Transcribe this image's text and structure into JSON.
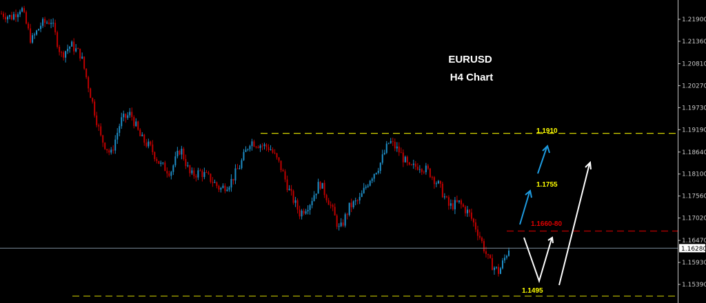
{
  "chart_data": {
    "type": "candlestick",
    "title": "EURUSD",
    "subtitle": "H4 Chart",
    "symbol": "EURUSD",
    "timeframe": "H4",
    "y_ticks": [
      "1.21900",
      "1.21360",
      "1.20810",
      "1.20270",
      "1.19730",
      "1.19190",
      "1.18640",
      "1.18100",
      "1.17560",
      "1.17020",
      "1.16470",
      "1.15930",
      "1.15390"
    ],
    "ylim": [
      1.1492,
      1.2218
    ],
    "current_price": "1.16280",
    "close_path": [
      1.2204,
      1.2195,
      1.222,
      1.2136,
      1.2178,
      1.2187,
      1.2102,
      1.2127,
      1.2102,
      1.2001,
      1.1899,
      1.1857,
      1.1941,
      1.1958,
      1.1899,
      1.1874,
      1.1832,
      1.1815,
      1.1874,
      1.1806,
      1.1815,
      1.1798,
      1.1773,
      1.1789,
      1.1832,
      1.1891,
      1.1882,
      1.1874,
      1.1832,
      1.1764,
      1.1713,
      1.1739,
      1.1789,
      1.1739,
      1.1671,
      1.173,
      1.1747,
      1.1798,
      1.1832,
      1.1891,
      1.1865,
      1.1823,
      1.1832,
      1.1815,
      1.1781,
      1.173,
      1.1739,
      1.1713,
      1.1662,
      1.1595,
      1.1569,
      1.1628
    ],
    "levels": [
      {
        "label": "1.1910",
        "price": 1.191,
        "color": "#d4d400",
        "style": "dashed"
      },
      {
        "label": "1.1755",
        "price": 1.1755,
        "color": "#ffff00",
        "style": "text"
      },
      {
        "label": "1.1660-80",
        "price": 1.167,
        "color": "#c00000",
        "style": "dashed"
      },
      {
        "label": "1.1495",
        "price": 1.1495,
        "color": "#b0b000",
        "style": "dashed"
      }
    ],
    "colors": {
      "bull": "#1e8fc8",
      "bear": "#c00000",
      "background": "#000000",
      "price_line": "#7a8a9a",
      "axis": "#c8c8c8"
    },
    "grid": false
  }
}
